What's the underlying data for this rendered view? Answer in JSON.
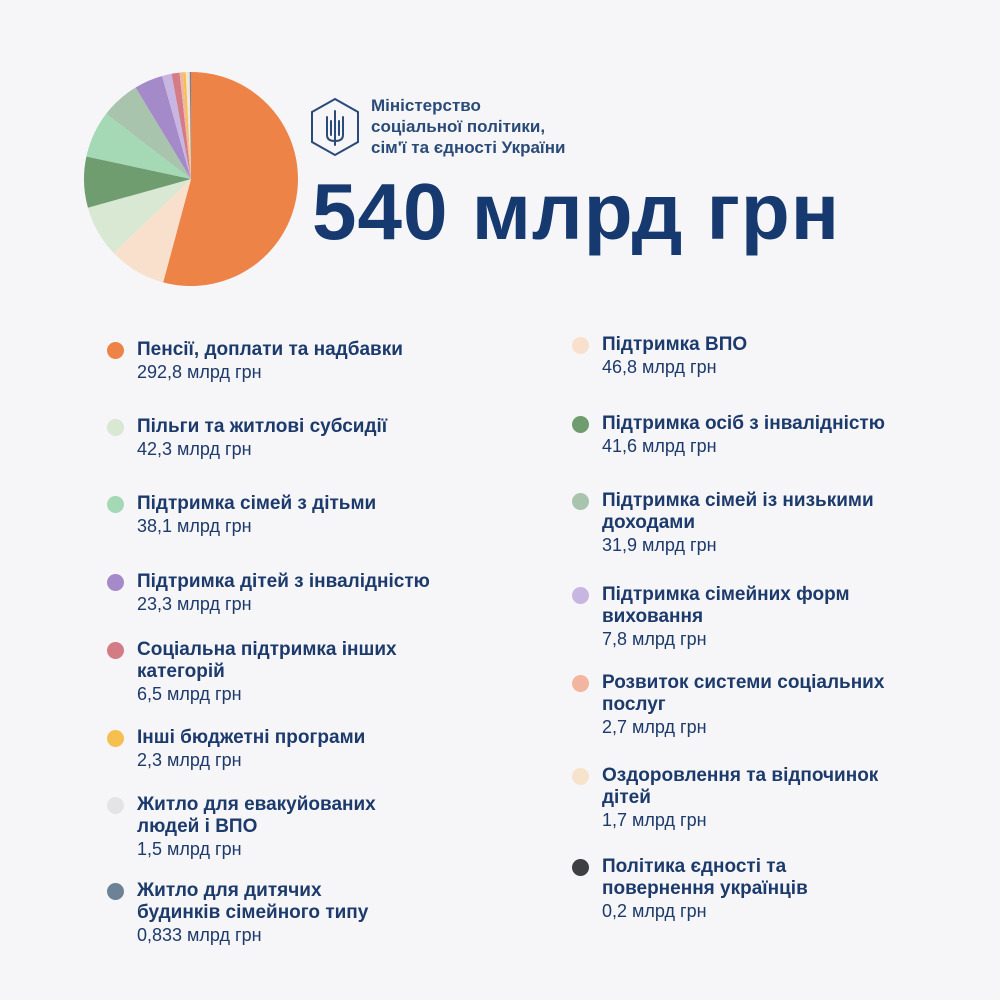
{
  "header": {
    "org_line1": "Міністерство",
    "org_line2": "соціальної політики,",
    "org_line3": "сім'ї та єдності України",
    "total": "540 млрд грн"
  },
  "chart_data": {
    "type": "pie",
    "unit": "млрд грн",
    "slices": [
      {
        "name": "Пенсії, доплати та надбавки",
        "value": 292.8,
        "value_label": "292,8 млрд грн",
        "color": "#ee8348"
      },
      {
        "name": "Підтримка ВПО",
        "value": 46.8,
        "value_label": "46,8 млрд грн",
        "color": "#f8e0cc"
      },
      {
        "name": "Пільги та житлові субсидії",
        "value": 42.3,
        "value_label": "42,3 млрд грн",
        "color": "#d8e8d2"
      },
      {
        "name": "Підтримка осіб з інвалідністю",
        "value": 41.6,
        "value_label": "41,6 млрд грн",
        "color": "#6f9d70"
      },
      {
        "name": "Підтримка сімей з дітьми",
        "value": 38.1,
        "value_label": "38,1 млрд грн",
        "color": "#a5d8b5"
      },
      {
        "name": "Підтримка сімей із низькими\nдоходами",
        "value": 31.9,
        "value_label": "31,9 млрд грн",
        "color": "#a8c4ad"
      },
      {
        "name": "Підтримка дітей з інвалідністю",
        "value": 23.3,
        "value_label": "23,3 млрд грн",
        "color": "#a58ac9"
      },
      {
        "name": "Підтримка сімейних форм\nвиховання",
        "value": 7.8,
        "value_label": "7,8 млрд грн",
        "color": "#c8b6e2"
      },
      {
        "name": "Соціальна підтримка інших\nкатегорій",
        "value": 6.5,
        "value_label": "6,5 млрд грн",
        "color": "#d47c86"
      },
      {
        "name": "Розвиток системи соціальних\nпослуг",
        "value": 2.7,
        "value_label": "2,7 млрд грн",
        "color": "#f2b6a0"
      },
      {
        "name": "Інші бюджетні програми",
        "value": 2.3,
        "value_label": "2,3 млрд грн",
        "color": "#f5c04f"
      },
      {
        "name": "Оздоровлення та відпочинок\nдітей",
        "value": 1.7,
        "value_label": "1,7 млрд грн",
        "color": "#f7e2cc"
      },
      {
        "name": "Житло для евакуйованих\nлюдей і ВПО",
        "value": 1.5,
        "value_label": "1,5 млрд грн",
        "color": "#e4e4e6"
      },
      {
        "name": "Житло для дитячих\nбудинків сімейного типу",
        "value": 0.833,
        "value_label": "0,833 млрд грн",
        "color": "#6e8296"
      },
      {
        "name": "Політика єдності та\nповернення українців",
        "value": 0.2,
        "value_label": "0,2 млрд грн",
        "color": "#3d3f42"
      }
    ],
    "pie_order": [
      0,
      1,
      2,
      3,
      4,
      5,
      6,
      7,
      8,
      9,
      10,
      11,
      12,
      13,
      14
    ],
    "legend": {
      "left_column": [
        0,
        2,
        4,
        6,
        8,
        10,
        12,
        13
      ],
      "right_column": [
        1,
        3,
        5,
        7,
        9,
        11,
        14
      ]
    }
  }
}
